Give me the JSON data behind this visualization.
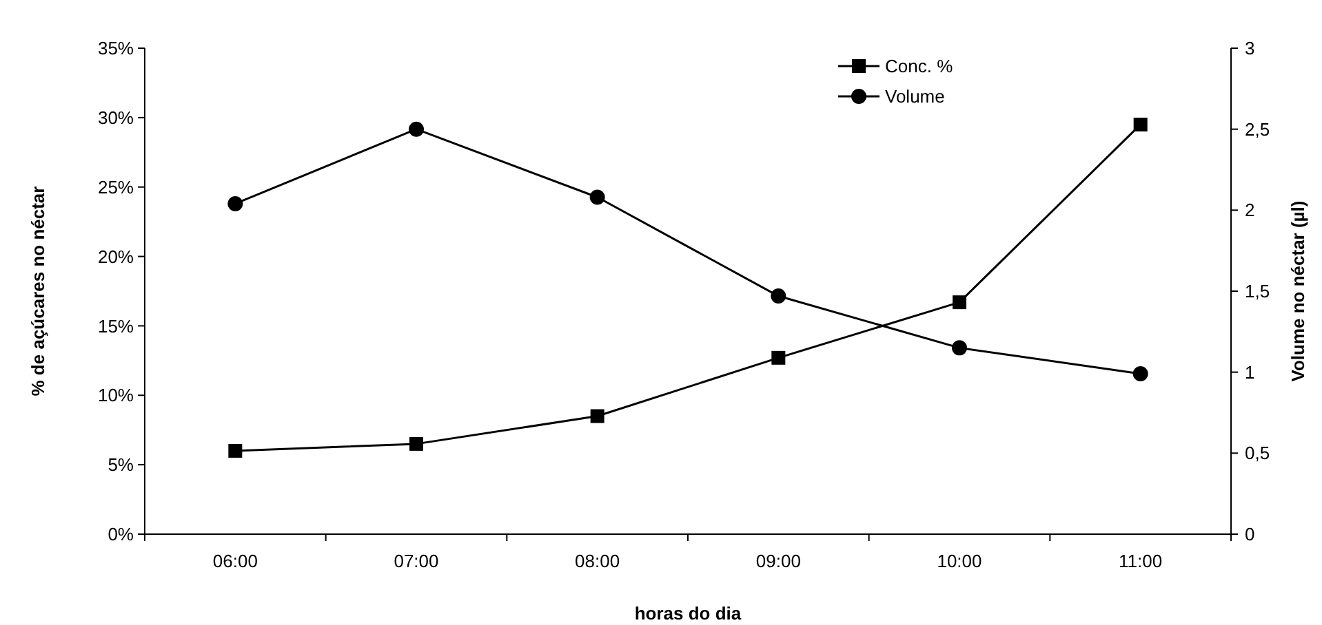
{
  "chart_data": {
    "type": "line",
    "xlabel": "horas do dia",
    "ylabel": "% de açúcares no néctar",
    "y2label": "Volume no néctar (µl)",
    "categories": [
      "06:00",
      "07:00",
      "08:00",
      "09:00",
      "10:00",
      "11:00"
    ],
    "series": [
      {
        "name": "Conc. %",
        "color": "#000000",
        "marker": "square",
        "values": [
          6,
          6.5,
          8.5,
          12.7,
          16.7,
          29.5
        ]
      },
      {
        "name": "Volume",
        "color": "#000000",
        "marker": "circle",
        "axis": "y2",
        "values": [
          2.04,
          2.5,
          2.08,
          1.47,
          1.15,
          0.99
        ]
      }
    ],
    "ylim": [
      0,
      35
    ],
    "yticks": [
      {
        "value": 0,
        "label": "0%"
      },
      {
        "value": 5,
        "label": "5%"
      },
      {
        "value": 10,
        "label": "10%"
      },
      {
        "value": 15,
        "label": "15%"
      },
      {
        "value": 20,
        "label": "20%"
      },
      {
        "value": 25,
        "label": "25%"
      },
      {
        "value": 30,
        "label": "30%"
      },
      {
        "value": 35,
        "label": "35%"
      }
    ],
    "y2lim": [
      0,
      3
    ],
    "y2ticks": [
      0,
      {
        "value": 0.5,
        "label": "0,5"
      },
      1,
      {
        "value": 1.5,
        "label": "1,5"
      },
      2,
      {
        "value": 2.5,
        "label": "2,5"
      },
      3
    ],
    "grid": false,
    "legend": "top right",
    "line_style": "solid"
  }
}
